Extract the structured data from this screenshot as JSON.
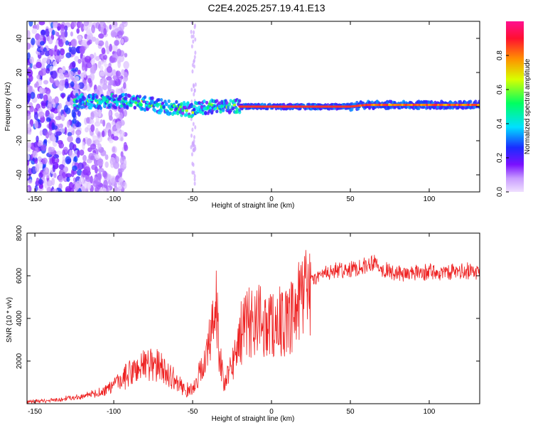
{
  "title": "C2E4.2025.257.19.41.E13",
  "colors": {
    "snr_line": "#ee2222",
    "spec_low": "#e6ccff",
    "spec_mid": "#7a10ff",
    "spec_core": "#ff2244"
  },
  "chart_data": [
    {
      "type": "heatmap",
      "name": "spectrogram",
      "xlabel": "Height of straight line (km)",
      "ylabel": "Frequency (Hz)",
      "xlim": [
        -155,
        132
      ],
      "ylim": [
        -50,
        50
      ],
      "xticks": [
        -150,
        -100,
        -50,
        0,
        50,
        100
      ],
      "yticks": [
        -40,
        -20,
        0,
        20,
        40
      ],
      "colorbar": {
        "label": "Normalized spectral amplitude",
        "range": [
          0,
          1
        ],
        "ticks": [
          "0.0",
          "0.2",
          "0.4",
          "0.6",
          "0.8"
        ]
      },
      "band_center": [
        [
          -120,
          3
        ],
        [
          -100,
          3
        ],
        [
          -90,
          3
        ],
        [
          -80,
          2
        ],
        [
          -70,
          0
        ],
        [
          -60,
          -1
        ],
        [
          -50,
          -2
        ],
        [
          -40,
          0
        ],
        [
          -30,
          0
        ],
        [
          -20,
          0
        ],
        [
          0,
          0
        ],
        [
          50,
          0
        ],
        [
          60,
          1
        ],
        [
          80,
          1
        ],
        [
          100,
          1
        ],
        [
          132,
          1
        ]
      ]
    },
    {
      "type": "line",
      "name": "snr",
      "xlabel": "Height of straight line (km)",
      "ylabel": "SNR (10 * v/v)",
      "xlim": [
        -155,
        132
      ],
      "ylim": [
        0,
        8000
      ],
      "xticks": [
        -150,
        -100,
        -50,
        0,
        50,
        100
      ],
      "yticks": [
        2000,
        4000,
        6000,
        8000
      ],
      "envelope": [
        [
          -155,
          100
        ],
        [
          -140,
          150
        ],
        [
          -130,
          250
        ],
        [
          -120,
          350
        ],
        [
          -110,
          500
        ],
        [
          -100,
          800
        ],
        [
          -90,
          1400
        ],
        [
          -80,
          1900
        ],
        [
          -70,
          1700
        ],
        [
          -60,
          1000
        ],
        [
          -55,
          700
        ],
        [
          -50,
          600
        ],
        [
          -45,
          1500
        ],
        [
          -40,
          2600
        ],
        [
          -37,
          3600
        ],
        [
          -35,
          5200
        ],
        [
          -33,
          2400
        ],
        [
          -30,
          800
        ],
        [
          -25,
          1800
        ],
        [
          -20,
          3200
        ],
        [
          -15,
          3800
        ],
        [
          -10,
          4000
        ],
        [
          -5,
          3800
        ],
        [
          0,
          3700
        ],
        [
          5,
          3900
        ],
        [
          10,
          3600
        ],
        [
          15,
          4200
        ],
        [
          20,
          5000
        ],
        [
          25,
          5700
        ],
        [
          30,
          6000
        ],
        [
          40,
          6200
        ],
        [
          50,
          6300
        ],
        [
          60,
          6500
        ],
        [
          65,
          6700
        ],
        [
          70,
          6300
        ],
        [
          80,
          6100
        ],
        [
          90,
          6100
        ],
        [
          100,
          6200
        ],
        [
          110,
          6100
        ],
        [
          120,
          6200
        ],
        [
          132,
          6200
        ]
      ]
    }
  ]
}
